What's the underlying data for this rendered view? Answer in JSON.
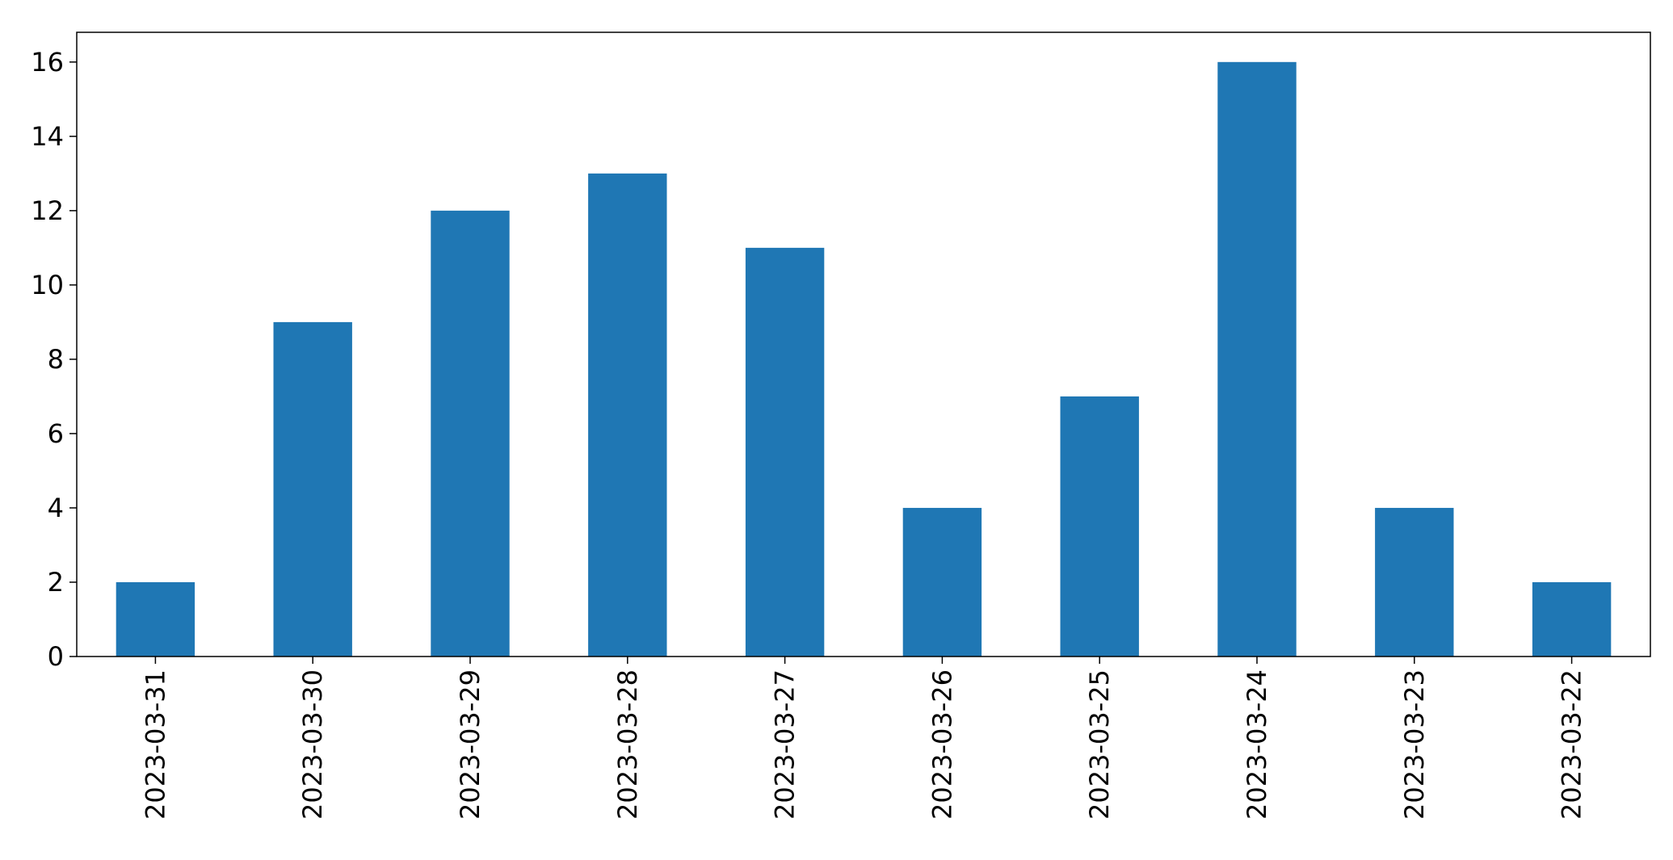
{
  "chart_data": {
    "type": "bar",
    "title": "",
    "xlabel": "",
    "ylabel": "",
    "categories": [
      "2023-03-31",
      "2023-03-30",
      "2023-03-29",
      "2023-03-28",
      "2023-03-27",
      "2023-03-26",
      "2023-03-25",
      "2023-03-24",
      "2023-03-23",
      "2023-03-22"
    ],
    "values": [
      2,
      9,
      12,
      13,
      11,
      4,
      7,
      16,
      4,
      2
    ],
    "ylim": [
      0,
      16.8
    ],
    "yticks": [
      0,
      2,
      4,
      6,
      8,
      10,
      12,
      14,
      16
    ],
    "bar_color": "#1f77b4",
    "grid": false,
    "legend": "none",
    "xtick_rotation": "vertical"
  }
}
